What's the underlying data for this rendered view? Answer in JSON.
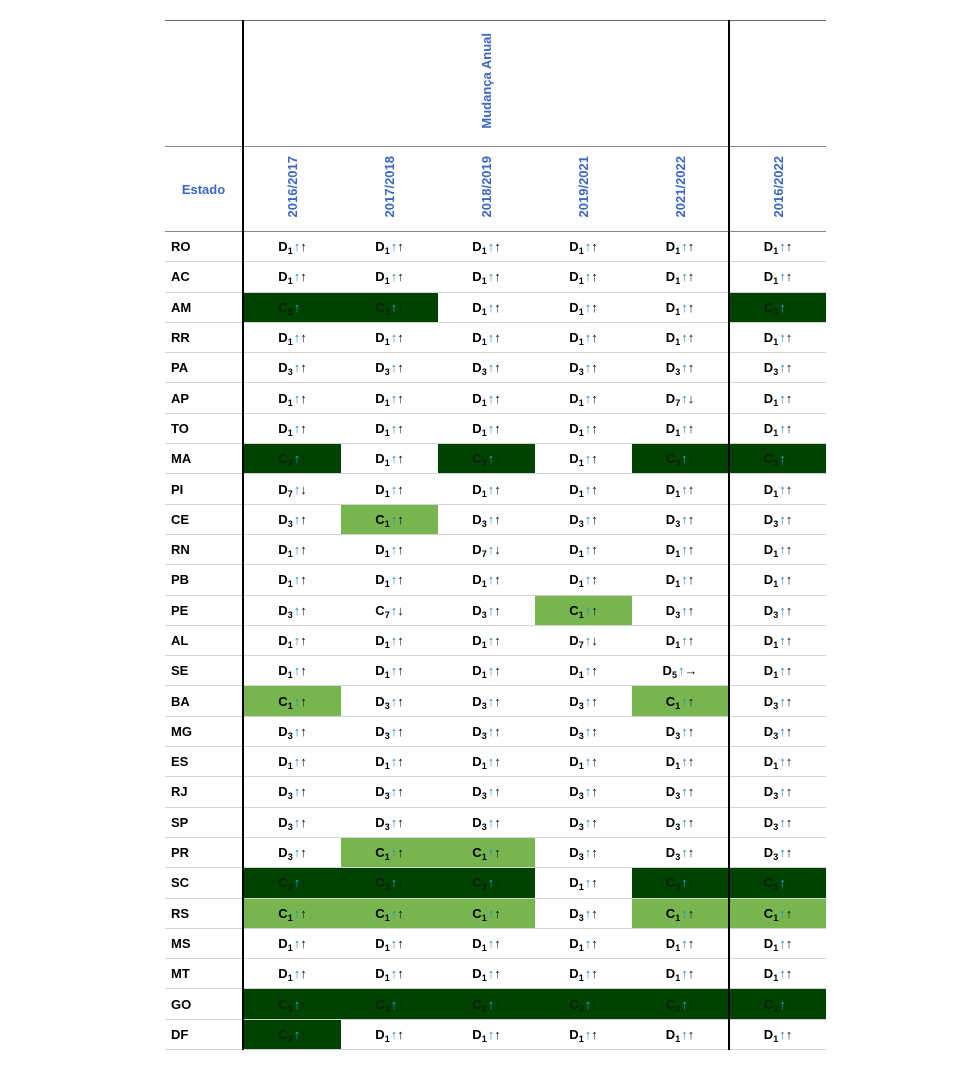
{
  "header": {
    "group_title": "Mudança Anual",
    "state_label": "Estado",
    "columns": [
      "2016/2017",
      "2017/2018",
      "2018/2019",
      "2019/2021",
      "2021/2022",
      "2016/2022"
    ]
  },
  "colors": {
    "dark": "#004200",
    "light": "#77b54f",
    "header_text": "#3a67c8"
  },
  "rows": [
    {
      "state": "RO",
      "cells": [
        [
          "D",
          "1",
          "↑",
          "↑",
          "none"
        ],
        [
          "D",
          "1",
          "↑",
          "↑",
          "none"
        ],
        [
          "D",
          "1",
          "↑",
          "↑",
          "none"
        ],
        [
          "D",
          "1",
          "↑",
          "↑",
          "none"
        ],
        [
          "D",
          "1",
          "↑",
          "↑",
          "none"
        ],
        [
          "D",
          "1",
          "↑",
          "↑",
          "none"
        ]
      ]
    },
    {
      "state": "AC",
      "cells": [
        [
          "D",
          "1",
          "↑",
          "↑",
          "none"
        ],
        [
          "D",
          "1",
          "↑",
          "↑",
          "none"
        ],
        [
          "D",
          "1",
          "↑",
          "↑",
          "none"
        ],
        [
          "D",
          "1",
          "↑",
          "↑",
          "none"
        ],
        [
          "D",
          "1",
          "↑",
          "↑",
          "none"
        ],
        [
          "D",
          "1",
          "↑",
          "↑",
          "none"
        ]
      ]
    },
    {
      "state": "AM",
      "cells": [
        [
          "C",
          "3",
          "↑",
          "↑",
          "dark"
        ],
        [
          "C",
          "3",
          "↑",
          "↑",
          "dark"
        ],
        [
          "D",
          "1",
          "↑",
          "↑",
          "none"
        ],
        [
          "D",
          "1",
          "↑",
          "↑",
          "none"
        ],
        [
          "D",
          "1",
          "↑",
          "↑",
          "none"
        ],
        [
          "C",
          "3",
          "↑",
          "↑",
          "dark"
        ]
      ]
    },
    {
      "state": "RR",
      "cells": [
        [
          "D",
          "1",
          "↑",
          "↑",
          "none"
        ],
        [
          "D",
          "1",
          "↑",
          "↑",
          "none"
        ],
        [
          "D",
          "1",
          "↑",
          "↑",
          "none"
        ],
        [
          "D",
          "1",
          "↑",
          "↑",
          "none"
        ],
        [
          "D",
          "1",
          "↑",
          "↑",
          "none"
        ],
        [
          "D",
          "1",
          "↑",
          "↑",
          "none"
        ]
      ]
    },
    {
      "state": "PA",
      "cells": [
        [
          "D",
          "3",
          "↑",
          "↑",
          "none"
        ],
        [
          "D",
          "3",
          "↑",
          "↑",
          "none"
        ],
        [
          "D",
          "3",
          "↑",
          "↑",
          "none"
        ],
        [
          "D",
          "3",
          "↑",
          "↑",
          "none"
        ],
        [
          "D",
          "3",
          "↑",
          "↑",
          "none"
        ],
        [
          "D",
          "3",
          "↑",
          "↑",
          "none"
        ]
      ]
    },
    {
      "state": "AP",
      "cells": [
        [
          "D",
          "1",
          "↑",
          "↑",
          "none"
        ],
        [
          "D",
          "1",
          "↑",
          "↑",
          "none"
        ],
        [
          "D",
          "1",
          "↑",
          "↑",
          "none"
        ],
        [
          "D",
          "1",
          "↑",
          "↑",
          "none"
        ],
        [
          "D",
          "7",
          "↑",
          "↓",
          "none"
        ],
        [
          "D",
          "1",
          "↑",
          "↑",
          "none"
        ]
      ]
    },
    {
      "state": "TO",
      "cells": [
        [
          "D",
          "1",
          "↑",
          "↑",
          "none"
        ],
        [
          "D",
          "1",
          "↑",
          "↑",
          "none"
        ],
        [
          "D",
          "1",
          "↑",
          "↑",
          "none"
        ],
        [
          "D",
          "1",
          "↑",
          "↑",
          "none"
        ],
        [
          "D",
          "1",
          "↑",
          "↑",
          "none"
        ],
        [
          "D",
          "1",
          "↑",
          "↑",
          "none"
        ]
      ]
    },
    {
      "state": "MA",
      "cells": [
        [
          "C",
          "3",
          "↑",
          "↑",
          "dark"
        ],
        [
          "D",
          "1",
          "↑",
          "↑",
          "none"
        ],
        [
          "C",
          "3",
          "↑",
          "↑",
          "dark"
        ],
        [
          "D",
          "1",
          "↑",
          "↑",
          "none"
        ],
        [
          "C",
          "3",
          "↑",
          "↑",
          "dark"
        ],
        [
          "C",
          "3",
          "↑",
          "↑",
          "dark"
        ]
      ]
    },
    {
      "state": "PI",
      "cells": [
        [
          "D",
          "7",
          "↑",
          "↓",
          "none"
        ],
        [
          "D",
          "1",
          "↑",
          "↑",
          "none"
        ],
        [
          "D",
          "1",
          "↑",
          "↑",
          "none"
        ],
        [
          "D",
          "1",
          "↑",
          "↑",
          "none"
        ],
        [
          "D",
          "1",
          "↑",
          "↑",
          "none"
        ],
        [
          "D",
          "1",
          "↑",
          "↑",
          "none"
        ]
      ]
    },
    {
      "state": "CE",
      "cells": [
        [
          "D",
          "3",
          "↑",
          "↑",
          "none"
        ],
        [
          "C",
          "1",
          "↑",
          "↑",
          "light"
        ],
        [
          "D",
          "3",
          "↑",
          "↑",
          "none"
        ],
        [
          "D",
          "3",
          "↑",
          "↑",
          "none"
        ],
        [
          "D",
          "3",
          "↑",
          "↑",
          "none"
        ],
        [
          "D",
          "3",
          "↑",
          "↑",
          "none"
        ]
      ]
    },
    {
      "state": "RN",
      "cells": [
        [
          "D",
          "1",
          "↑",
          "↑",
          "none"
        ],
        [
          "D",
          "1",
          "↑",
          "↑",
          "none"
        ],
        [
          "D",
          "7",
          "↑",
          "↓",
          "none"
        ],
        [
          "D",
          "1",
          "↑",
          "↑",
          "none"
        ],
        [
          "D",
          "1",
          "↑",
          "↑",
          "none"
        ],
        [
          "D",
          "1",
          "↑",
          "↑",
          "none"
        ]
      ]
    },
    {
      "state": "PB",
      "cells": [
        [
          "D",
          "1",
          "↑",
          "↑",
          "none"
        ],
        [
          "D",
          "1",
          "↑",
          "↑",
          "none"
        ],
        [
          "D",
          "1",
          "↑",
          "↑",
          "none"
        ],
        [
          "D",
          "1",
          "↑",
          "↑",
          "none"
        ],
        [
          "D",
          "1",
          "↑",
          "↑",
          "none"
        ],
        [
          "D",
          "1",
          "↑",
          "↑",
          "none"
        ]
      ]
    },
    {
      "state": "PE",
      "cells": [
        [
          "D",
          "3",
          "↑",
          "↑",
          "none"
        ],
        [
          "C",
          "7",
          "↑",
          "↓",
          "none"
        ],
        [
          "D",
          "3",
          "↑",
          "↑",
          "none"
        ],
        [
          "C",
          "1",
          "↑",
          "↑",
          "light"
        ],
        [
          "D",
          "3",
          "↑",
          "↑",
          "none"
        ],
        [
          "D",
          "3",
          "↑",
          "↑",
          "none"
        ]
      ]
    },
    {
      "state": "AL",
      "cells": [
        [
          "D",
          "1",
          "↑",
          "↑",
          "none"
        ],
        [
          "D",
          "1",
          "↑",
          "↑",
          "none"
        ],
        [
          "D",
          "1",
          "↑",
          "↑",
          "none"
        ],
        [
          "D",
          "7",
          "↑",
          "↓",
          "none"
        ],
        [
          "D",
          "1",
          "↑",
          "↑",
          "none"
        ],
        [
          "D",
          "1",
          "↑",
          "↑",
          "none"
        ]
      ]
    },
    {
      "state": "SE",
      "cells": [
        [
          "D",
          "1",
          "↑",
          "↑",
          "none"
        ],
        [
          "D",
          "1",
          "↑",
          "↑",
          "none"
        ],
        [
          "D",
          "1",
          "↑",
          "↑",
          "none"
        ],
        [
          "D",
          "1",
          "↑",
          "↑",
          "none"
        ],
        [
          "D",
          "5",
          "↑",
          "→",
          "none"
        ],
        [
          "D",
          "1",
          "↑",
          "↑",
          "none"
        ]
      ]
    },
    {
      "state": "BA",
      "cells": [
        [
          "C",
          "1",
          "↑",
          "↑",
          "light"
        ],
        [
          "D",
          "3",
          "↑",
          "↑",
          "none"
        ],
        [
          "D",
          "3",
          "↑",
          "↑",
          "none"
        ],
        [
          "D",
          "3",
          "↑",
          "↑",
          "none"
        ],
        [
          "C",
          "1",
          "↑",
          "↑",
          "light"
        ],
        [
          "D",
          "3",
          "↑",
          "↑",
          "none"
        ]
      ]
    },
    {
      "state": "MG",
      "cells": [
        [
          "D",
          "3",
          "↑",
          "↑",
          "none"
        ],
        [
          "D",
          "3",
          "↑",
          "↑",
          "none"
        ],
        [
          "D",
          "3",
          "↑",
          "↑",
          "none"
        ],
        [
          "D",
          "3",
          "↑",
          "↑",
          "none"
        ],
        [
          "D",
          "3",
          "↑",
          "↑",
          "none"
        ],
        [
          "D",
          "3",
          "↑",
          "↑",
          "none"
        ]
      ]
    },
    {
      "state": "ES",
      "cells": [
        [
          "D",
          "1",
          "↑",
          "↑",
          "none"
        ],
        [
          "D",
          "1",
          "↑",
          "↑",
          "none"
        ],
        [
          "D",
          "1",
          "↑",
          "↑",
          "none"
        ],
        [
          "D",
          "1",
          "↑",
          "↑",
          "none"
        ],
        [
          "D",
          "1",
          "↑",
          "↑",
          "none"
        ],
        [
          "D",
          "1",
          "↑",
          "↑",
          "none"
        ]
      ]
    },
    {
      "state": "RJ",
      "cells": [
        [
          "D",
          "3",
          "↑",
          "↑",
          "none"
        ],
        [
          "D",
          "3",
          "↑",
          "↑",
          "none"
        ],
        [
          "D",
          "3",
          "↑",
          "↑",
          "none"
        ],
        [
          "D",
          "3",
          "↑",
          "↑",
          "none"
        ],
        [
          "D",
          "3",
          "↑",
          "↑",
          "none"
        ],
        [
          "D",
          "3",
          "↑",
          "↑",
          "none"
        ]
      ]
    },
    {
      "state": "SP",
      "cells": [
        [
          "D",
          "3",
          "↑",
          "↑",
          "none"
        ],
        [
          "D",
          "3",
          "↑",
          "↑",
          "none"
        ],
        [
          "D",
          "3",
          "↑",
          "↑",
          "none"
        ],
        [
          "D",
          "3",
          "↑",
          "↑",
          "none"
        ],
        [
          "D",
          "3",
          "↑",
          "↑",
          "none"
        ],
        [
          "D",
          "3",
          "↑",
          "↑",
          "none"
        ]
      ]
    },
    {
      "state": "PR",
      "cells": [
        [
          "D",
          "3",
          "↑",
          "↑",
          "none"
        ],
        [
          "C",
          "1",
          "↑",
          "↑",
          "light"
        ],
        [
          "C",
          "1",
          "↑",
          "↑",
          "light"
        ],
        [
          "D",
          "3",
          "↑",
          "↑",
          "none"
        ],
        [
          "D",
          "3",
          "↑",
          "↑",
          "none"
        ],
        [
          "D",
          "3",
          "↑",
          "↑",
          "none"
        ]
      ]
    },
    {
      "state": "SC",
      "cells": [
        [
          "C",
          "3",
          "↑",
          "↑",
          "dark"
        ],
        [
          "C",
          "3",
          "↑",
          "↑",
          "dark"
        ],
        [
          "C",
          "3",
          "↑",
          "↑",
          "dark"
        ],
        [
          "D",
          "1",
          "↑",
          "↑",
          "none"
        ],
        [
          "C",
          "3",
          "↑",
          "↑",
          "dark"
        ],
        [
          "C",
          "3",
          "↑",
          "↑",
          "dark"
        ]
      ]
    },
    {
      "state": "RS",
      "cells": [
        [
          "C",
          "1",
          "↑",
          "↑",
          "light"
        ],
        [
          "C",
          "1",
          "↑",
          "↑",
          "light"
        ],
        [
          "C",
          "1",
          "↑",
          "↑",
          "light"
        ],
        [
          "D",
          "3",
          "↑",
          "↑",
          "none"
        ],
        [
          "C",
          "1",
          "↑",
          "↑",
          "light"
        ],
        [
          "C",
          "1",
          "↑",
          "↑",
          "light"
        ]
      ]
    },
    {
      "state": "MS",
      "cells": [
        [
          "D",
          "1",
          "↑",
          "↑",
          "none"
        ],
        [
          "D",
          "1",
          "↑",
          "↑",
          "none"
        ],
        [
          "D",
          "1",
          "↑",
          "↑",
          "none"
        ],
        [
          "D",
          "1",
          "↑",
          "↑",
          "none"
        ],
        [
          "D",
          "1",
          "↑",
          "↑",
          "none"
        ],
        [
          "D",
          "1",
          "↑",
          "↑",
          "none"
        ]
      ]
    },
    {
      "state": "MT",
      "cells": [
        [
          "D",
          "1",
          "↑",
          "↑",
          "none"
        ],
        [
          "D",
          "1",
          "↑",
          "↑",
          "none"
        ],
        [
          "D",
          "1",
          "↑",
          "↑",
          "none"
        ],
        [
          "D",
          "1",
          "↑",
          "↑",
          "none"
        ],
        [
          "D",
          "1",
          "↑",
          "↑",
          "none"
        ],
        [
          "D",
          "1",
          "↑",
          "↑",
          "none"
        ]
      ]
    },
    {
      "state": "GO",
      "cells": [
        [
          "C",
          "3",
          "↑",
          "↑",
          "dark"
        ],
        [
          "C",
          "3",
          "↑",
          "↑",
          "dark"
        ],
        [
          "C",
          "3",
          "↑",
          "↑",
          "dark"
        ],
        [
          "C",
          "3",
          "↑",
          "↑",
          "dark"
        ],
        [
          "C",
          "3",
          "↑",
          "↑",
          "dark"
        ],
        [
          "C",
          "3",
          "↑",
          "↑",
          "dark"
        ]
      ]
    },
    {
      "state": "DF",
      "cells": [
        [
          "C",
          "3",
          "↑",
          "↑",
          "dark"
        ],
        [
          "D",
          "1",
          "↑",
          "↑",
          "none"
        ],
        [
          "D",
          "1",
          "↑",
          "↑",
          "none"
        ],
        [
          "D",
          "1",
          "↑",
          "↑",
          "none"
        ],
        [
          "D",
          "1",
          "↑",
          "↑",
          "none"
        ],
        [
          "D",
          "1",
          "↑",
          "↑",
          "none"
        ]
      ]
    }
  ]
}
